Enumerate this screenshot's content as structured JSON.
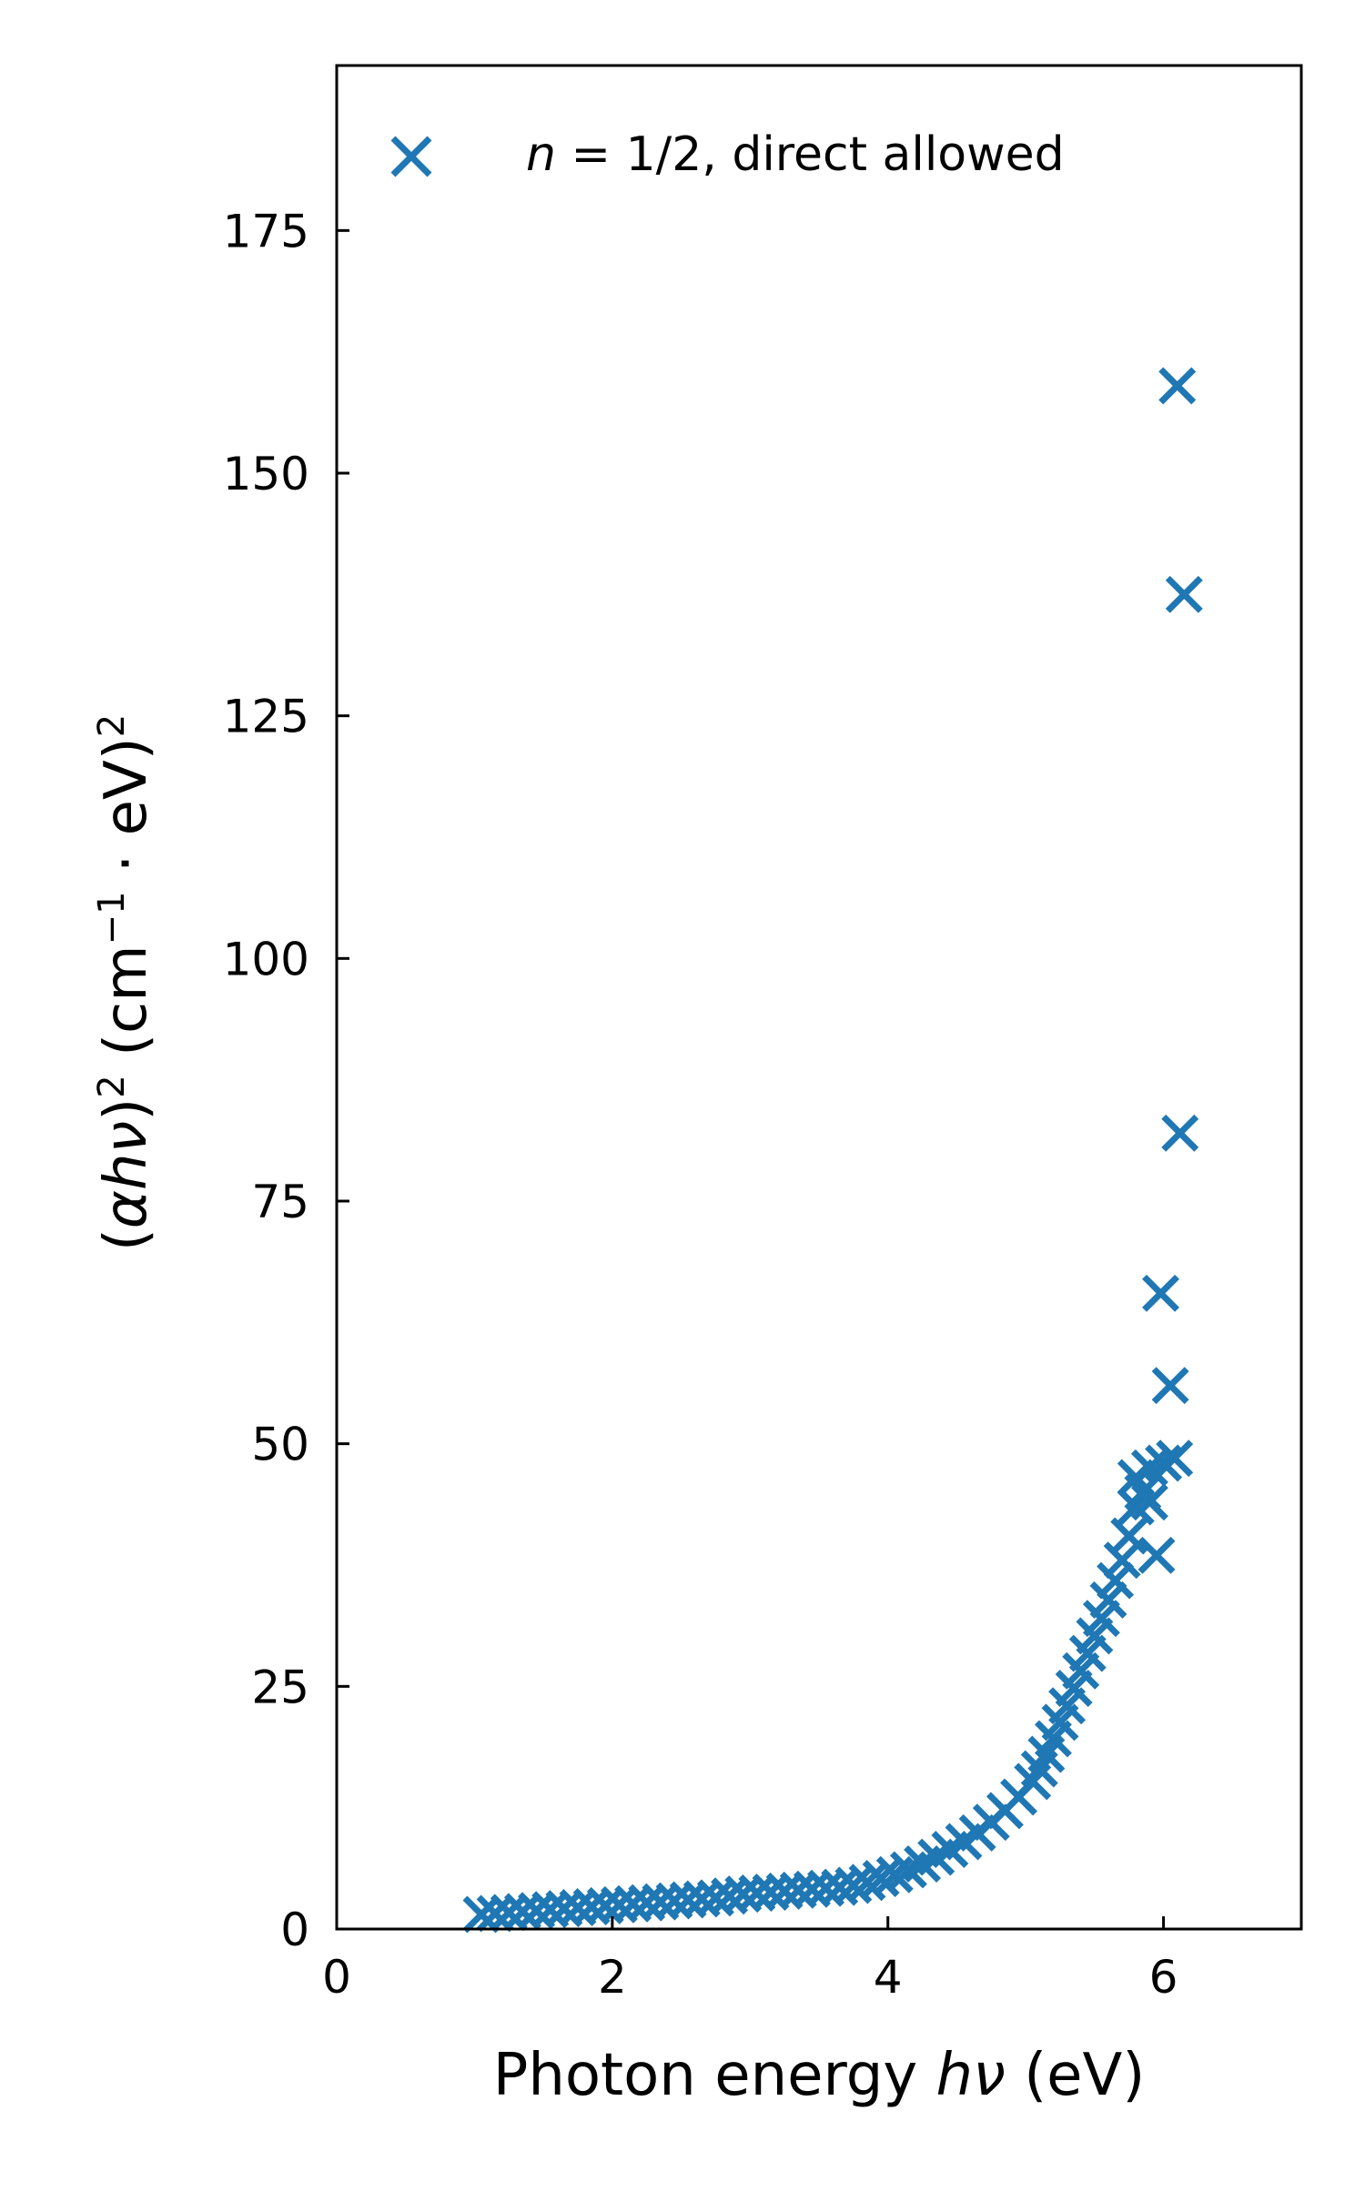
{
  "chart_data": {
    "type": "scatter",
    "title": "",
    "xlabel": {
      "pre": "Photon energy ",
      "sym": "hν",
      "post": " (eV)"
    },
    "ylabel": {
      "open": "(",
      "sym": "αhν",
      "mid": ")",
      "sup1": "2",
      "rest": " (cm",
      "sup2": "−1",
      "dot": " · eV)",
      "sup3": "2"
    },
    "xlim": [
      0,
      7
    ],
    "ylim": [
      0,
      192
    ],
    "xticks": [
      0,
      2,
      4,
      6
    ],
    "yticks": [
      0,
      25,
      50,
      75,
      100,
      125,
      150,
      175
    ],
    "marker": "x",
    "color": "#1f77b4",
    "legend": {
      "position": "top-left",
      "var": "n",
      "text": " = 1/2, direct allowed"
    },
    "series": [
      {
        "name": "n = 1/2, direct allowed",
        "x": [
          1.05,
          1.15,
          1.25,
          1.35,
          1.45,
          1.55,
          1.65,
          1.75,
          1.85,
          1.95,
          2.05,
          2.15,
          2.25,
          2.35,
          2.45,
          2.55,
          2.65,
          2.75,
          2.85,
          2.95,
          3.05,
          3.15,
          3.25,
          3.35,
          3.45,
          3.55,
          3.65,
          3.75,
          3.85,
          3.95,
          4.05,
          4.15,
          4.25,
          4.35,
          4.45,
          4.55,
          4.65,
          4.75,
          4.85,
          4.95,
          5.05,
          5.1,
          5.15,
          5.2,
          5.25,
          5.3,
          5.35,
          5.4,
          5.45,
          5.5,
          5.55,
          5.6,
          5.65,
          5.7,
          5.75,
          5.8,
          5.85,
          5.9,
          5.95,
          5.8,
          5.9,
          6.0,
          6.05,
          6.08,
          5.98,
          6.1,
          6.12,
          6.15
        ],
        "y": [
          1.5,
          1.6,
          1.7,
          1.8,
          1.9,
          2.0,
          2.1,
          2.2,
          2.3,
          2.4,
          2.5,
          2.6,
          2.7,
          2.8,
          2.9,
          3.0,
          3.1,
          3.2,
          3.4,
          3.6,
          3.7,
          3.8,
          3.9,
          4.0,
          4.1,
          4.2,
          4.3,
          4.5,
          4.8,
          5.2,
          5.6,
          6.1,
          6.7,
          7.4,
          8.2,
          9.0,
          9.9,
          11.0,
          12.2,
          13.6,
          15.2,
          16.5,
          18.0,
          19.6,
          21.3,
          23.0,
          24.8,
          26.6,
          28.4,
          30.2,
          32.0,
          33.9,
          35.9,
          38.0,
          40.5,
          43.5,
          45.0,
          47.5,
          38.5,
          46.5,
          44.0,
          48.0,
          56.0,
          48.5,
          65.5,
          159.0,
          82.0,
          137.5
        ]
      }
    ]
  }
}
